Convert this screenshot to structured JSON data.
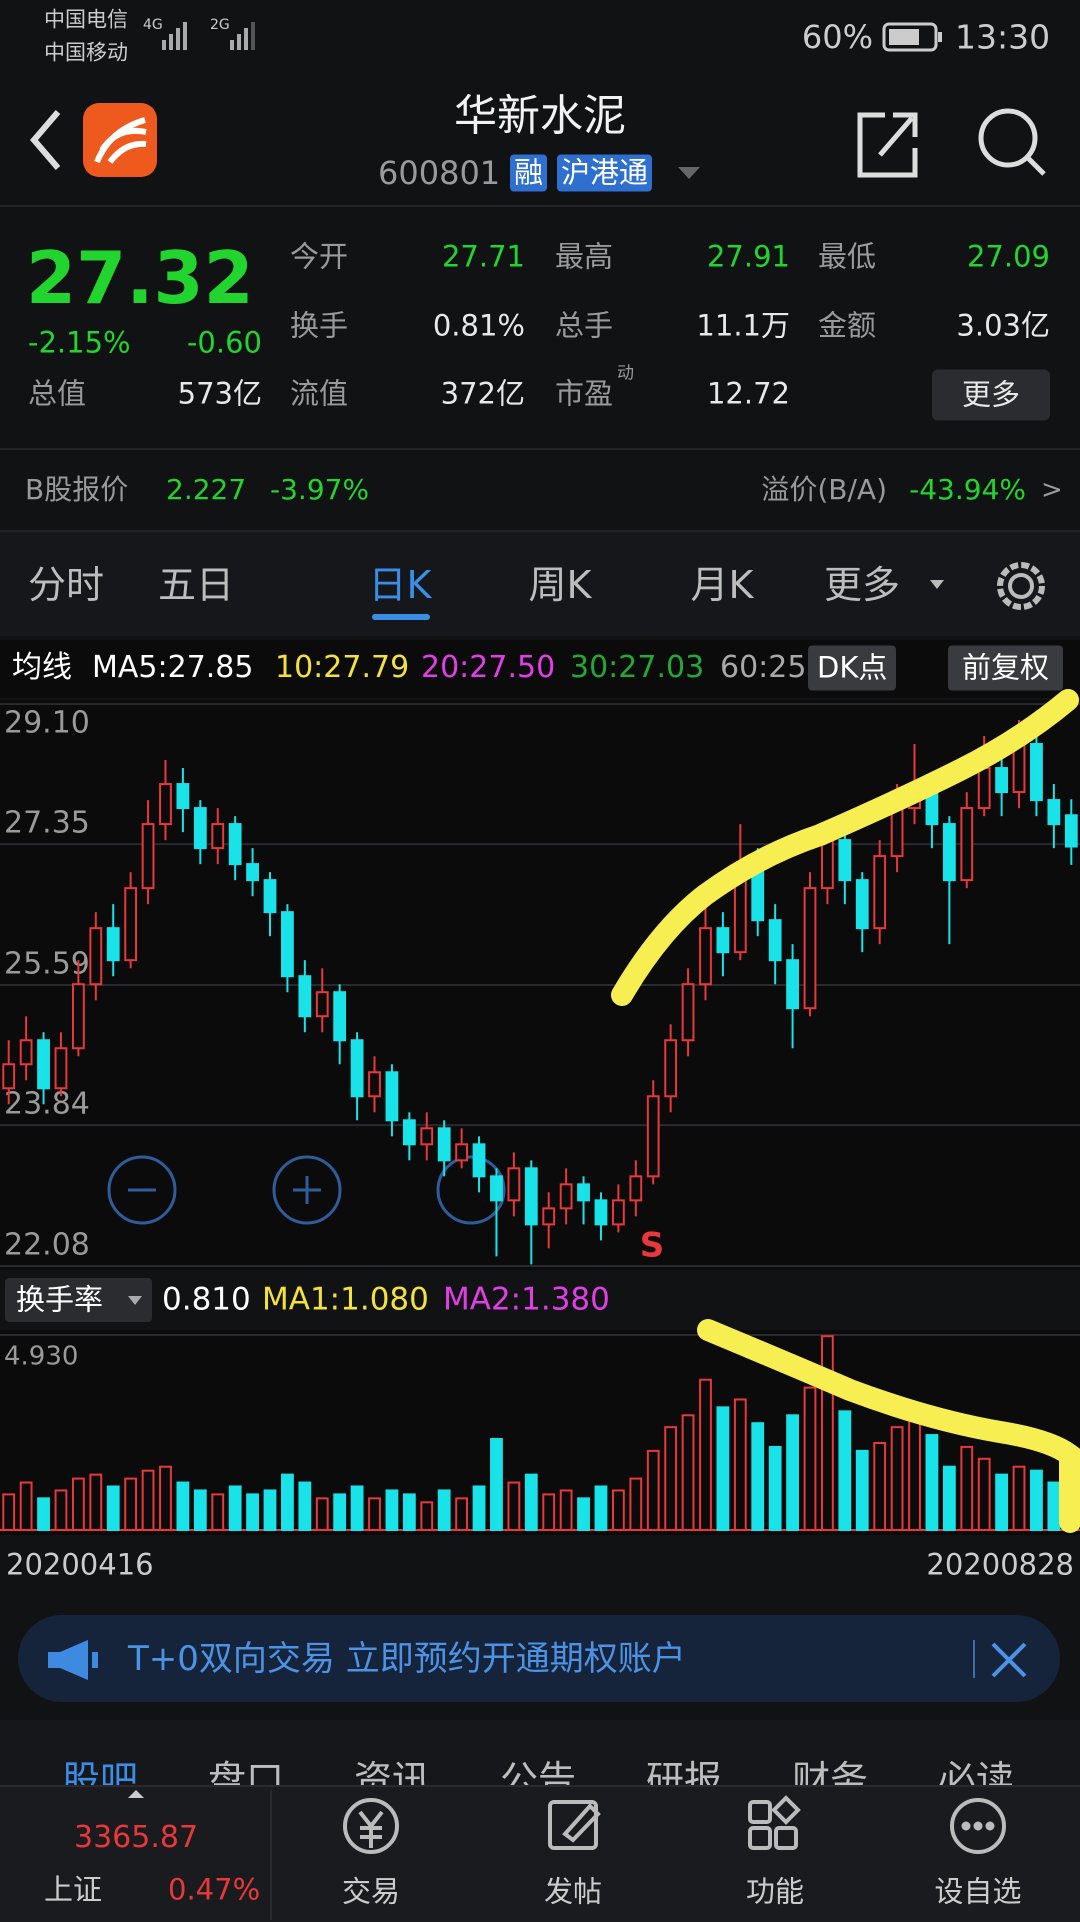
{
  "status_bar": {
    "carrier1": "中国电信",
    "carrier2": "中国移动",
    "net1": "4G",
    "net2": "2G",
    "battery": "60%",
    "time": "13:30"
  },
  "header": {
    "title": "华新水泥",
    "code": "600801",
    "tags": [
      "融",
      "沪港通"
    ]
  },
  "quote": {
    "price": "27.32",
    "change_pct": "-2.15%",
    "change": "-0.60",
    "total_value_label": "总值",
    "total_value": "573亿",
    "fields": [
      [
        {
          "label": "今开",
          "value": "27.71"
        },
        {
          "label": "最高",
          "value": "27.91"
        },
        {
          "label": "最低",
          "value": "27.09"
        }
      ],
      [
        {
          "label": "换手",
          "value": "0.81%"
        },
        {
          "label": "总手",
          "value": "11.1万"
        },
        {
          "label": "金额",
          "value": "3.03亿"
        }
      ],
      [
        {
          "label": "流值",
          "value": "372亿"
        },
        {
          "label": "市盈",
          "sup": "动",
          "value": "12.72"
        }
      ]
    ],
    "more": "更多"
  },
  "b_share": {
    "label": "B股报价",
    "price": "2.227",
    "pct": "-3.97%",
    "premium_label": "溢价(B/A)",
    "premium": "-43.94%",
    "arrow": ">"
  },
  "tabs": [
    "分时",
    "五日",
    "日K",
    "周K",
    "月K",
    "更多"
  ],
  "ma_legend": {
    "label": "均线",
    "items": [
      {
        "text": "MA5:27.85",
        "color": "#ffffff"
      },
      {
        "text": "10:27.79",
        "color": "#f3e23a"
      },
      {
        "text": "20:27.50",
        "color": "#e23ee6"
      },
      {
        "text": "30:27.03",
        "color": "#25a832"
      },
      {
        "text": "60:25",
        "color": "#a8a8a8"
      }
    ],
    "buttons": [
      "DK点",
      "前复权"
    ]
  },
  "kline": {
    "type": "candlestick",
    "up_color": "#e8383a",
    "down_color": "#19e3e8",
    "opens": [
      24.3,
      24.6,
      24.9,
      24.3,
      24.8,
      25.6,
      26.3,
      25.9,
      26.8,
      27.6,
      28.1,
      27.8,
      27.3,
      27.6,
      27.1,
      26.9,
      26.5,
      25.7,
      25.2,
      25.5,
      24.9,
      24.2,
      24.5,
      23.9,
      23.6,
      23.8,
      23.4,
      23.6,
      23.2,
      22.9,
      23.3,
      22.6,
      22.8,
      23.1,
      22.9,
      22.6,
      22.9,
      23.2,
      24.2,
      24.9,
      25.6,
      26.3,
      26.0,
      27.1,
      26.4,
      25.9,
      25.3,
      26.8,
      27.4,
      26.9,
      26.3,
      27.2,
      27.8,
      28.1,
      27.6,
      26.9,
      27.8,
      28.3,
      28.0,
      28.6,
      27.9,
      27.71
    ],
    "closes": [
      24.6,
      24.9,
      24.3,
      24.8,
      25.6,
      26.3,
      25.9,
      26.8,
      27.6,
      28.1,
      27.8,
      27.3,
      27.6,
      27.1,
      26.9,
      26.5,
      25.7,
      25.2,
      25.5,
      24.9,
      24.2,
      24.5,
      23.9,
      23.6,
      23.8,
      23.4,
      23.6,
      23.2,
      22.9,
      23.3,
      22.6,
      22.8,
      23.1,
      22.9,
      22.6,
      22.9,
      23.2,
      24.2,
      24.9,
      25.6,
      26.3,
      26.0,
      27.1,
      26.4,
      25.9,
      25.3,
      26.8,
      27.4,
      26.9,
      26.3,
      27.2,
      27.8,
      28.1,
      27.6,
      26.9,
      27.8,
      28.3,
      28.0,
      28.6,
      27.9,
      27.6,
      27.32
    ],
    "highs": [
      24.9,
      25.2,
      25.0,
      25.0,
      25.9,
      26.5,
      26.6,
      27.0,
      27.9,
      28.4,
      28.3,
      27.9,
      27.8,
      27.7,
      27.3,
      27.0,
      26.6,
      25.9,
      25.8,
      25.6,
      25.0,
      24.7,
      24.6,
      24.0,
      24.0,
      23.9,
      23.8,
      23.7,
      23.3,
      23.5,
      23.4,
      23.0,
      23.3,
      23.2,
      23.0,
      23.1,
      23.4,
      24.4,
      25.1,
      25.8,
      26.6,
      26.5,
      27.6,
      27.3,
      26.6,
      26.1,
      27.0,
      27.6,
      27.5,
      27.0,
      27.4,
      28.1,
      28.6,
      28.2,
      27.7,
      28.0,
      28.7,
      28.5,
      28.9,
      28.7,
      28.1,
      27.91
    ],
    "lows": [
      24.1,
      24.4,
      24.1,
      24.2,
      24.7,
      25.4,
      25.7,
      25.8,
      26.6,
      27.4,
      27.5,
      27.1,
      27.1,
      26.9,
      26.7,
      26.2,
      25.5,
      25.0,
      25.0,
      24.6,
      23.9,
      24.0,
      23.7,
      23.4,
      23.4,
      23.2,
      23.3,
      23.0,
      22.2,
      22.7,
      22.1,
      22.3,
      22.6,
      22.6,
      22.4,
      22.5,
      22.7,
      23.1,
      24.0,
      24.7,
      25.4,
      25.7,
      25.9,
      26.2,
      25.6,
      24.8,
      25.2,
      26.6,
      26.6,
      26.0,
      26.1,
      27.0,
      27.6,
      27.3,
      26.1,
      26.8,
      27.7,
      27.7,
      27.8,
      27.7,
      27.3,
      27.09
    ],
    "ylim": [
      22.08,
      29.1
    ],
    "yticks": [
      {
        "value": 29.1,
        "label": "29.10"
      },
      27.35,
      25.59,
      23.84,
      22.08
    ],
    "marker": "S"
  },
  "turnover": {
    "type": "bar",
    "label": "换手率",
    "current": "0.810",
    "ma1": "MA1:1.080",
    "ma2": "MA2:1.380",
    "values": [
      0.9,
      1.2,
      0.8,
      1.0,
      1.3,
      1.4,
      1.1,
      1.3,
      1.5,
      1.6,
      1.2,
      1.0,
      0.9,
      1.1,
      0.9,
      1.0,
      1.4,
      1.2,
      0.8,
      0.9,
      1.1,
      0.8,
      1.0,
      0.9,
      0.7,
      1.0,
      0.8,
      1.1,
      2.3,
      1.2,
      1.4,
      0.9,
      1.0,
      0.8,
      1.1,
      1.0,
      1.3,
      2.0,
      2.6,
      2.9,
      3.8,
      3.1,
      3.3,
      2.7,
      2.1,
      2.9,
      3.6,
      4.9,
      3.0,
      2.0,
      2.2,
      2.6,
      3.1,
      2.4,
      1.6,
      2.1,
      1.8,
      1.4,
      1.6,
      1.5,
      1.2,
      0.81
    ],
    "ylim": [
      0,
      4.93
    ],
    "yticks": [
      {
        "value": 4.93,
        "label": "4.930"
      }
    ],
    "start_date": "20200416",
    "end_date": "20200828"
  },
  "banner": {
    "text": "T+0双向交易 立即预约开通期权账户"
  },
  "sub_tabs": [
    "股吧",
    "盘口",
    "资讯",
    "公告",
    "研报",
    "财务",
    "必读"
  ],
  "bottom_nav": {
    "index_price": "3365.87",
    "index_name": "上证",
    "index_pct": "0.47%",
    "items": [
      "交易",
      "发帖",
      "功能",
      "设自选"
    ]
  }
}
